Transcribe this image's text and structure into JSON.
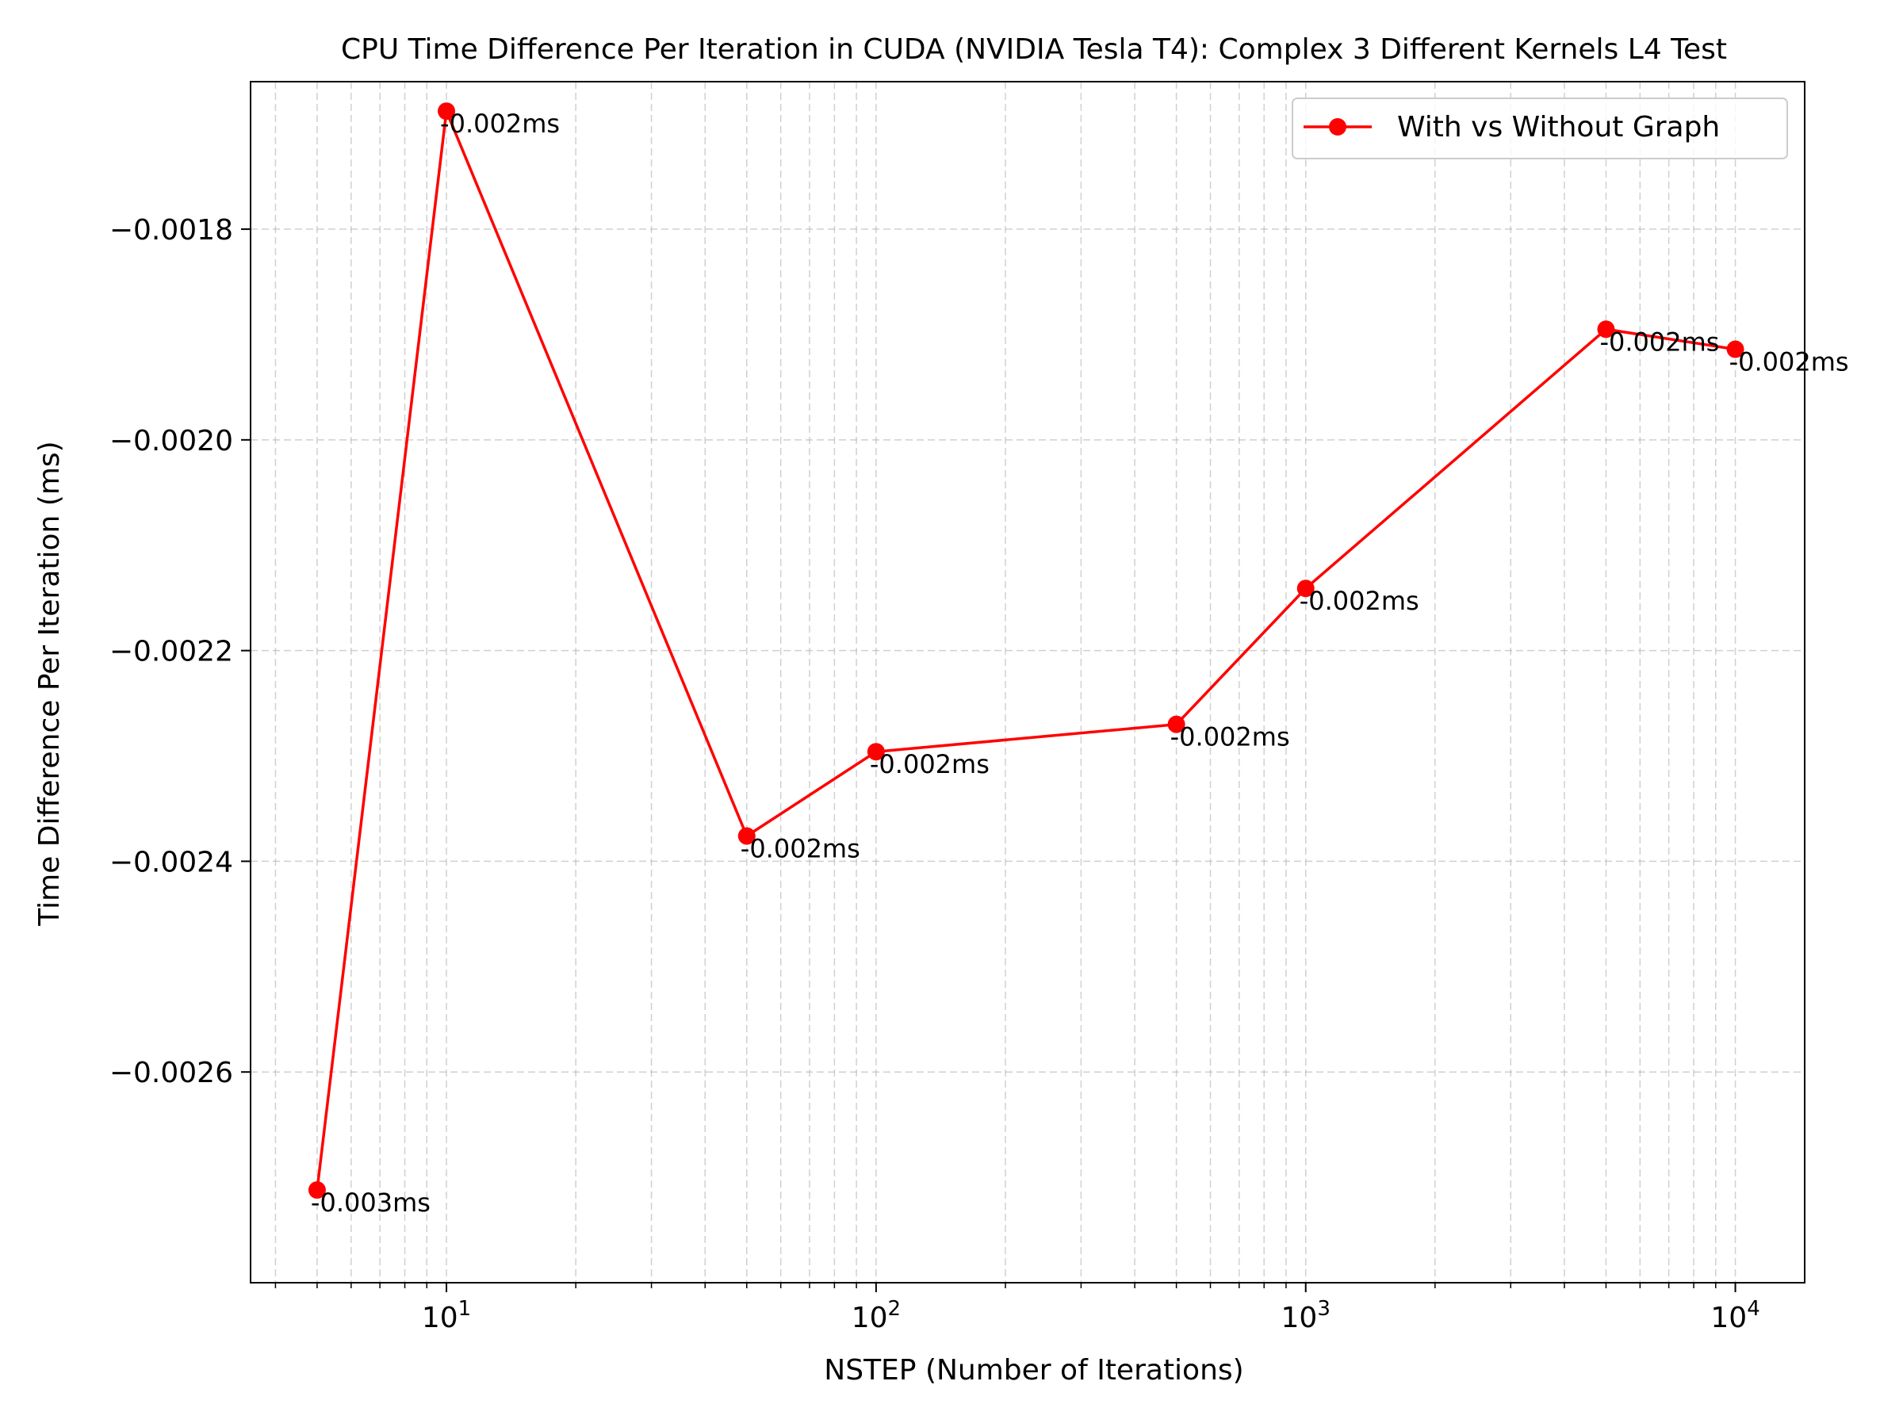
{
  "chart_data": {
    "type": "line",
    "title": "CPU Time Difference Per Iteration in CUDA (NVIDIA Tesla T4): Complex 3 Different Kernels L4 Test",
    "xlabel": "NSTEP (Number of Iterations)",
    "ylabel": "Time Difference Per Iteration (ms)",
    "x_scale": "log",
    "xlim": [
      3.5,
      14500
    ],
    "ylim": [
      -0.0028,
      -0.00166
    ],
    "x_ticks": [
      {
        "value": 10,
        "base": "10",
        "exp": "1"
      },
      {
        "value": 100,
        "base": "10",
        "exp": "2"
      },
      {
        "value": 1000,
        "base": "10",
        "exp": "3"
      },
      {
        "value": 10000,
        "base": "10",
        "exp": "4"
      }
    ],
    "y_ticks": [
      {
        "value": -0.0018,
        "label": "−0.0018"
      },
      {
        "value": -0.002,
        "label": "−0.0020"
      },
      {
        "value": -0.0022,
        "label": "−0.0022"
      },
      {
        "value": -0.0024,
        "label": "−0.0024"
      },
      {
        "value": -0.0026,
        "label": "−0.0026"
      }
    ],
    "grid": true,
    "legend_position": "top-right",
    "series": [
      {
        "name": "With vs Without Graph",
        "color": "#ff0000",
        "x": [
          5,
          10,
          50,
          100,
          500,
          1000,
          5000,
          10000
        ],
        "y": [
          -0.002712,
          -0.001688,
          -0.002376,
          -0.002296,
          -0.00227,
          -0.002141,
          -0.001895,
          -0.001914
        ],
        "labels": [
          "-0.003ms",
          "-0.002ms",
          "-0.002ms",
          "-0.002ms",
          "-0.002ms",
          "-0.002ms",
          "-0.002ms",
          "-0.002ms"
        ]
      }
    ]
  }
}
